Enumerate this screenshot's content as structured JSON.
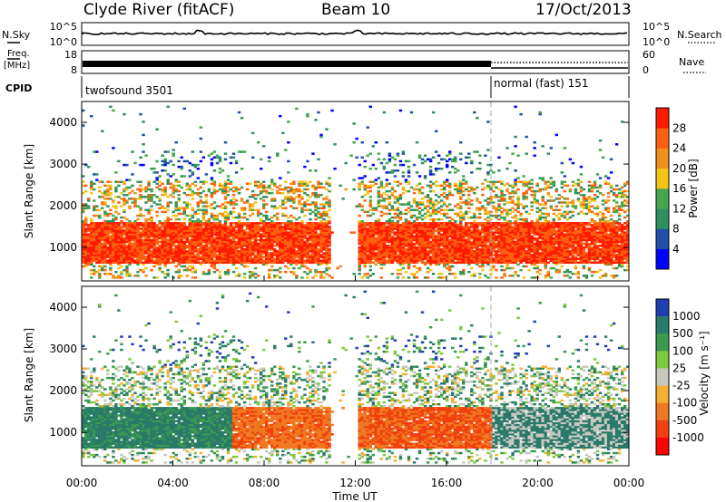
{
  "header": {
    "title": "Clyde River (fitACF)",
    "beam": "Beam 10",
    "date": "17/Oct/2013"
  },
  "strips": {
    "nsky_label": "N.Sky",
    "nsky_ticks": [
      "10^5",
      "10^0"
    ],
    "nsearch_label": "N.Search",
    "nsearch_ticks": [
      "10^5",
      "10^0"
    ],
    "freq_label_1": "Freq.",
    "freq_label_2": "[MHz]",
    "freq_ticks": [
      "18",
      "8"
    ],
    "nave_label": "Nave",
    "nave_ticks": [
      "60",
      "0"
    ],
    "cpid_label": "CPID",
    "cpid_segments": [
      {
        "label": "twofsound 3501",
        "start_hour": 0,
        "end_hour": 18
      },
      {
        "label": "normal (fast) 151",
        "start_hour": 18,
        "end_hour": 24
      }
    ]
  },
  "colors": {
    "power": [
      "#0000ff",
      "#1f4fa8",
      "#2f8f5f",
      "#46a64c",
      "#f2c418",
      "#f09018",
      "#ff6010",
      "#ff1a00"
    ],
    "velocity": [
      "#1f3fb0",
      "#2a7a6a",
      "#3a9a50",
      "#80c840",
      "#c8c8c0",
      "#f4b030",
      "#f07820",
      "#f04010",
      "#ff0000"
    ]
  },
  "chart_data": [
    {
      "type": "heatmap",
      "quantity": "power",
      "xlabel": "",
      "ylabel": "Slant Range [km]",
      "xlim": [
        0,
        24
      ],
      "ylim": [
        200,
        4500
      ],
      "yticks": [
        "1000",
        "2000",
        "3000",
        "4000"
      ],
      "colorbar_label": "Power [dB]",
      "colorbar_ticks": [
        "4",
        "8",
        "12",
        "16",
        "20",
        "24",
        "28"
      ],
      "description_values": {
        "main_echo_band_km": [
          600,
          1600
        ],
        "peak_power_dB": 30
      }
    },
    {
      "type": "heatmap",
      "quantity": "velocity",
      "xlabel": "Time UT",
      "ylabel": "Slant Range [km]",
      "xlim": [
        0,
        24
      ],
      "ylim": [
        200,
        4500
      ],
      "xticks": [
        "00:00",
        "04:00",
        "08:00",
        "12:00",
        "16:00",
        "20:00",
        "00:00"
      ],
      "yticks": [
        "1000",
        "2000",
        "3000",
        "4000"
      ],
      "colorbar_label": "Velocity [m s⁻¹]",
      "colorbar_ticks": [
        "1000",
        "500",
        "100",
        "25",
        "-25",
        "-100",
        "-500",
        "-1000"
      ]
    }
  ]
}
